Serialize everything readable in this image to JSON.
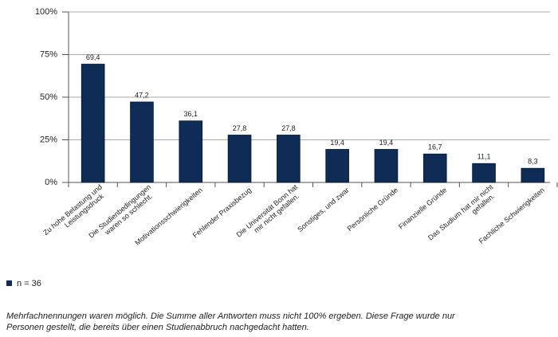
{
  "chart_data": {
    "type": "bar",
    "categories": [
      "Zu hohe Belastung und\nLeistungsdruck",
      "Die Studienbedingungen\nwaren so schlecht.",
      "Motivationsschwierigkeiten",
      "Fehlender Praxisbezug",
      "Die Universität Bonn hat\nmir nicht gefallen.",
      "Sonstiges, und zwar",
      "Persönliche Gründe",
      "Finanzielle Gründe",
      "Das Studium hat mir nicht\ngefallen.",
      "Fachliche Schwierigkeiten"
    ],
    "series": [
      {
        "name": "n = 36",
        "color": "#0e2c55",
        "values": [
          69.4,
          47.2,
          36.1,
          27.8,
          27.8,
          19.4,
          19.4,
          16.7,
          11.1,
          8.3
        ],
        "value_labels": [
          "69,4",
          "47,2",
          "36,1",
          "27,8",
          "27,8",
          "19,4",
          "19,4",
          "16,7",
          "11,1",
          "8,3"
        ]
      }
    ],
    "ylim": [
      0,
      100
    ],
    "yticks": [
      {
        "value": 0,
        "label": "0%"
      },
      {
        "value": 25,
        "label": "25%"
      },
      {
        "value": 50,
        "label": "50%"
      },
      {
        "value": 75,
        "label": "75%"
      },
      {
        "value": 100,
        "label": "100%"
      }
    ],
    "grid": true,
    "legend": "bottom-left",
    "footnote": [
      "Mehrfachnennungen waren möglich. Die Summe aller Antworten muss nicht 100% ergeben. Diese Frage wurde nur",
      "Personen gestellt, die bereits über einen Studienabbruch nachgedacht hatten."
    ]
  }
}
